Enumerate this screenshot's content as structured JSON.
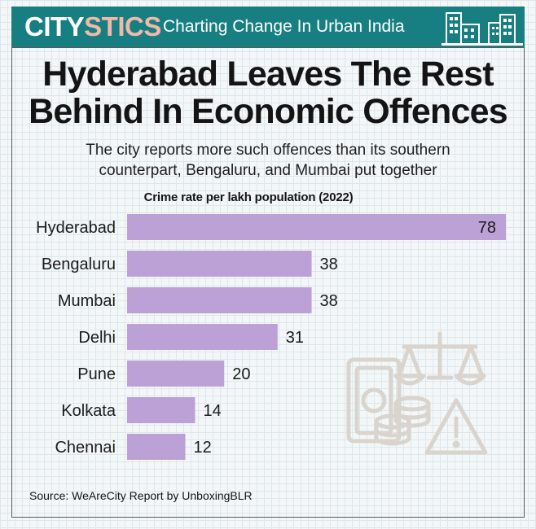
{
  "header": {
    "brand_part1": "CITY",
    "brand_part2": "STICS",
    "tagline": "Charting Change In Urban India",
    "banner_color": "#177f82",
    "skyline_icon": "city-skyline-icon"
  },
  "title_line1": "Hyderabad Leaves The Rest",
  "title_line2": "Behind In Economic Offences",
  "subtitle_line1": "The city reports more such offences than its southern",
  "subtitle_line2": "counterpart, Bengaluru, and Mumbai put together",
  "source": "Source: WeAreCity Report by UnboxingBLR",
  "illustration_icon": "money-scales-coins-warning-icon",
  "chart_data": {
    "type": "bar",
    "orientation": "horizontal",
    "title": "Crime rate per lakh population (2022)",
    "categories": [
      "Hyderabad",
      "Bengaluru",
      "Mumbai",
      "Delhi",
      "Pune",
      "Kolkata",
      "Chennai"
    ],
    "values": [
      78,
      38,
      38,
      31,
      20,
      14,
      12
    ],
    "bar_color": "#bba1d6",
    "grid": false,
    "legend": "none"
  }
}
